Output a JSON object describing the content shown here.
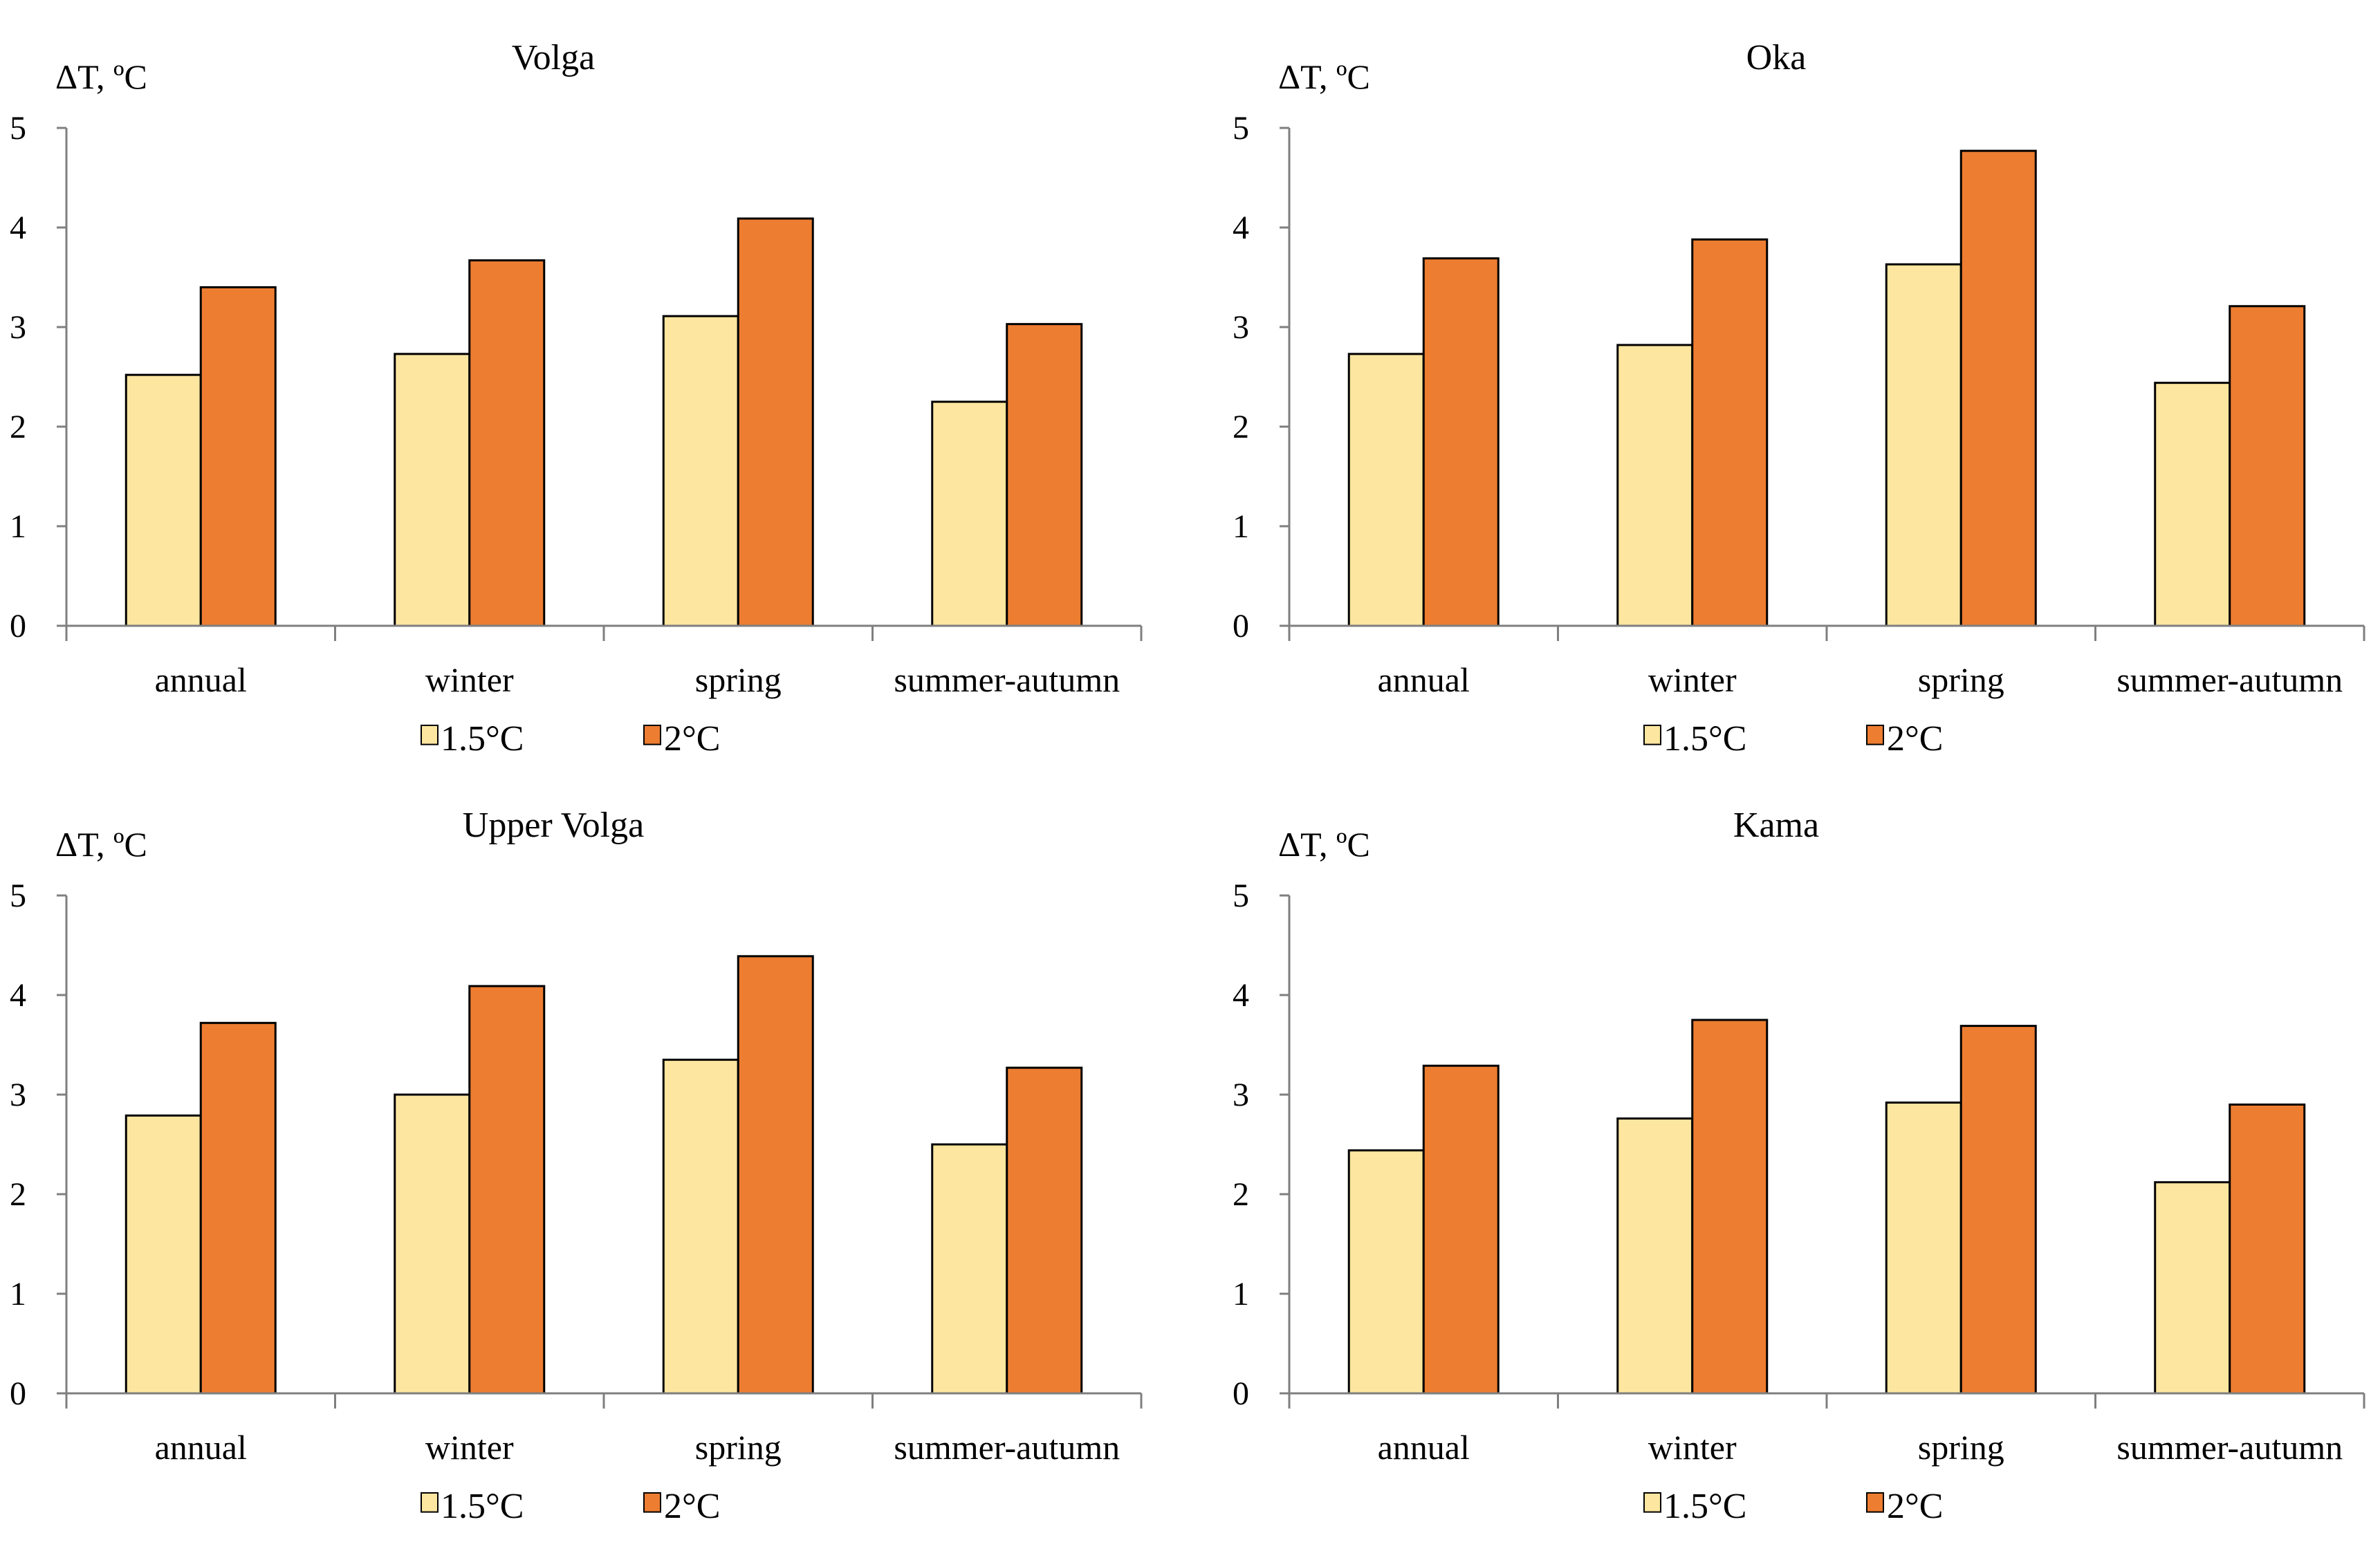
{
  "colors": {
    "series_1_5": "#FDE6A0",
    "series_2": "#ED7D31",
    "axis": "#7F7F7F",
    "bar_stroke": "#000000"
  },
  "chart_data": [
    {
      "type": "bar",
      "title": "Volga",
      "ylabel": "ΔT, ºC",
      "xlabel": "",
      "categories": [
        "annual",
        "winter",
        "spring",
        "summer-autumn"
      ],
      "ylim": [
        0,
        5
      ],
      "yticks": [
        "0",
        "1",
        "2",
        "3",
        "4",
        "5"
      ],
      "legend_position": "bottom",
      "grid": false,
      "series": [
        {
          "name": "1.5°C",
          "values": [
            2.52,
            2.73,
            3.11,
            2.25
          ]
        },
        {
          "name": "2°C",
          "values": [
            3.4,
            3.67,
            4.09,
            3.03
          ]
        }
      ]
    },
    {
      "type": "bar",
      "title": "Oka",
      "ylabel": "ΔT, ºC",
      "xlabel": "",
      "categories": [
        "annual",
        "winter",
        "spring",
        "summer-autumn"
      ],
      "ylim": [
        0,
        5
      ],
      "yticks": [
        "0",
        "1",
        "2",
        "3",
        "4",
        "5"
      ],
      "legend_position": "bottom",
      "grid": false,
      "series": [
        {
          "name": "1.5°C",
          "values": [
            2.73,
            2.82,
            3.63,
            2.44
          ]
        },
        {
          "name": "2°C",
          "values": [
            3.69,
            3.88,
            4.77,
            3.21
          ]
        }
      ]
    },
    {
      "type": "bar",
      "title": "Upper Volga",
      "ylabel": "ΔT, ºC",
      "xlabel": "",
      "categories": [
        "annual",
        "winter",
        "spring",
        "summer-autumn"
      ],
      "ylim": [
        0,
        5
      ],
      "yticks": [
        "0",
        "1",
        "2",
        "3",
        "4",
        "5"
      ],
      "legend_position": "bottom",
      "grid": false,
      "series": [
        {
          "name": "1.5°C",
          "values": [
            2.79,
            3.0,
            3.35,
            2.5
          ]
        },
        {
          "name": "2°C",
          "values": [
            3.72,
            4.09,
            4.39,
            3.27
          ]
        }
      ]
    },
    {
      "type": "bar",
      "title": "Kama",
      "ylabel": "ΔT, ºC",
      "xlabel": "",
      "categories": [
        "annual",
        "winter",
        "spring",
        "summer-autumn"
      ],
      "ylim": [
        0,
        5
      ],
      "yticks": [
        "0",
        "1",
        "2",
        "3",
        "4",
        "5"
      ],
      "legend_position": "bottom",
      "grid": false,
      "series": [
        {
          "name": "1.5°C",
          "values": [
            2.44,
            2.76,
            2.92,
            2.12
          ]
        },
        {
          "name": "2°C",
          "values": [
            3.29,
            3.75,
            3.69,
            2.9
          ]
        }
      ]
    }
  ]
}
